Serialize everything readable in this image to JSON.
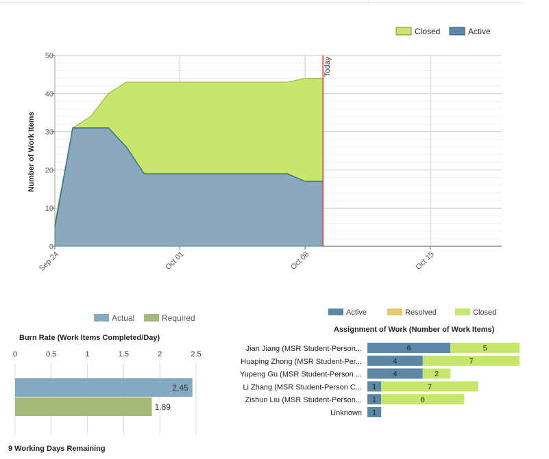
{
  "colors": {
    "active": "#5c87a6",
    "closed": "#c6e66c",
    "resolved": "#e3c96a",
    "actual": "#86a9c2",
    "required": "#a4b978",
    "today_line": "#e0312a"
  },
  "chart_data": [
    {
      "type": "area",
      "title": "",
      "ylabel": "Number of Work Items",
      "xlabel": "",
      "ylim": [
        0,
        50
      ],
      "yticks": [
        0,
        10,
        20,
        30,
        40,
        50
      ],
      "x_tick_labels": [
        "Sep 24",
        "Oct 01",
        "Oct 08",
        "Oct 15"
      ],
      "x_tick_days": [
        0,
        7,
        14,
        21
      ],
      "x_range_days": [
        0,
        25
      ],
      "today_label": "Today",
      "today_day": 15,
      "legend_position": "top-right",
      "legend": [
        "Closed",
        "Active"
      ],
      "days": [
        0,
        1,
        2,
        3,
        4,
        5,
        6,
        7,
        8,
        9,
        10,
        11,
        12,
        13,
        14,
        15
      ],
      "series": [
        {
          "name": "Active",
          "values": [
            5,
            31,
            31,
            31,
            26,
            19,
            19,
            19,
            19,
            19,
            19,
            19,
            19,
            19,
            17,
            17
          ]
        },
        {
          "name": "Closed",
          "values": [
            1,
            0,
            3,
            9,
            17,
            24,
            24,
            24,
            24,
            24,
            24,
            24,
            24,
            24,
            27,
            27
          ]
        }
      ]
    },
    {
      "type": "bar",
      "orientation": "horizontal",
      "title": "Burn Rate (Work Items Completed/Day)",
      "legend": [
        "Actual",
        "Required"
      ],
      "legend_position": "top",
      "xlim": [
        0,
        2.5
      ],
      "xticks": [
        "0",
        "0.5",
        "1",
        "1.5",
        "2",
        "2.5"
      ],
      "series": [
        {
          "name": "Actual",
          "value": 2.45,
          "label": "2.45"
        },
        {
          "name": "Required",
          "value": 1.89,
          "label": "1.89"
        }
      ]
    },
    {
      "type": "bar",
      "orientation": "horizontal",
      "stacked": true,
      "title": "Assignment of Work (Number of Work Items)",
      "legend": [
        "Active",
        "Resolved",
        "Closed"
      ],
      "legend_position": "top",
      "categories": [
        "Jian Jiang (MSR Student-Person...",
        "Huaping Zhong (MSR Student-Per...",
        "Yupeng Gu (MSR Student-Person ...",
        "Li Zhang (MSR Student-Person C...",
        "Zishun Liu (MSR Student-Person...",
        "Unknown"
      ],
      "series": [
        {
          "name": "Active",
          "values": [
            6,
            4,
            4,
            1,
            1,
            1
          ]
        },
        {
          "name": "Resolved",
          "values": [
            0,
            0,
            0,
            0,
            0,
            0
          ]
        },
        {
          "name": "Closed",
          "values": [
            5,
            7,
            2,
            7,
            6,
            0
          ]
        }
      ]
    }
  ],
  "footer": {
    "remaining": "9 Working Days Remaining"
  }
}
